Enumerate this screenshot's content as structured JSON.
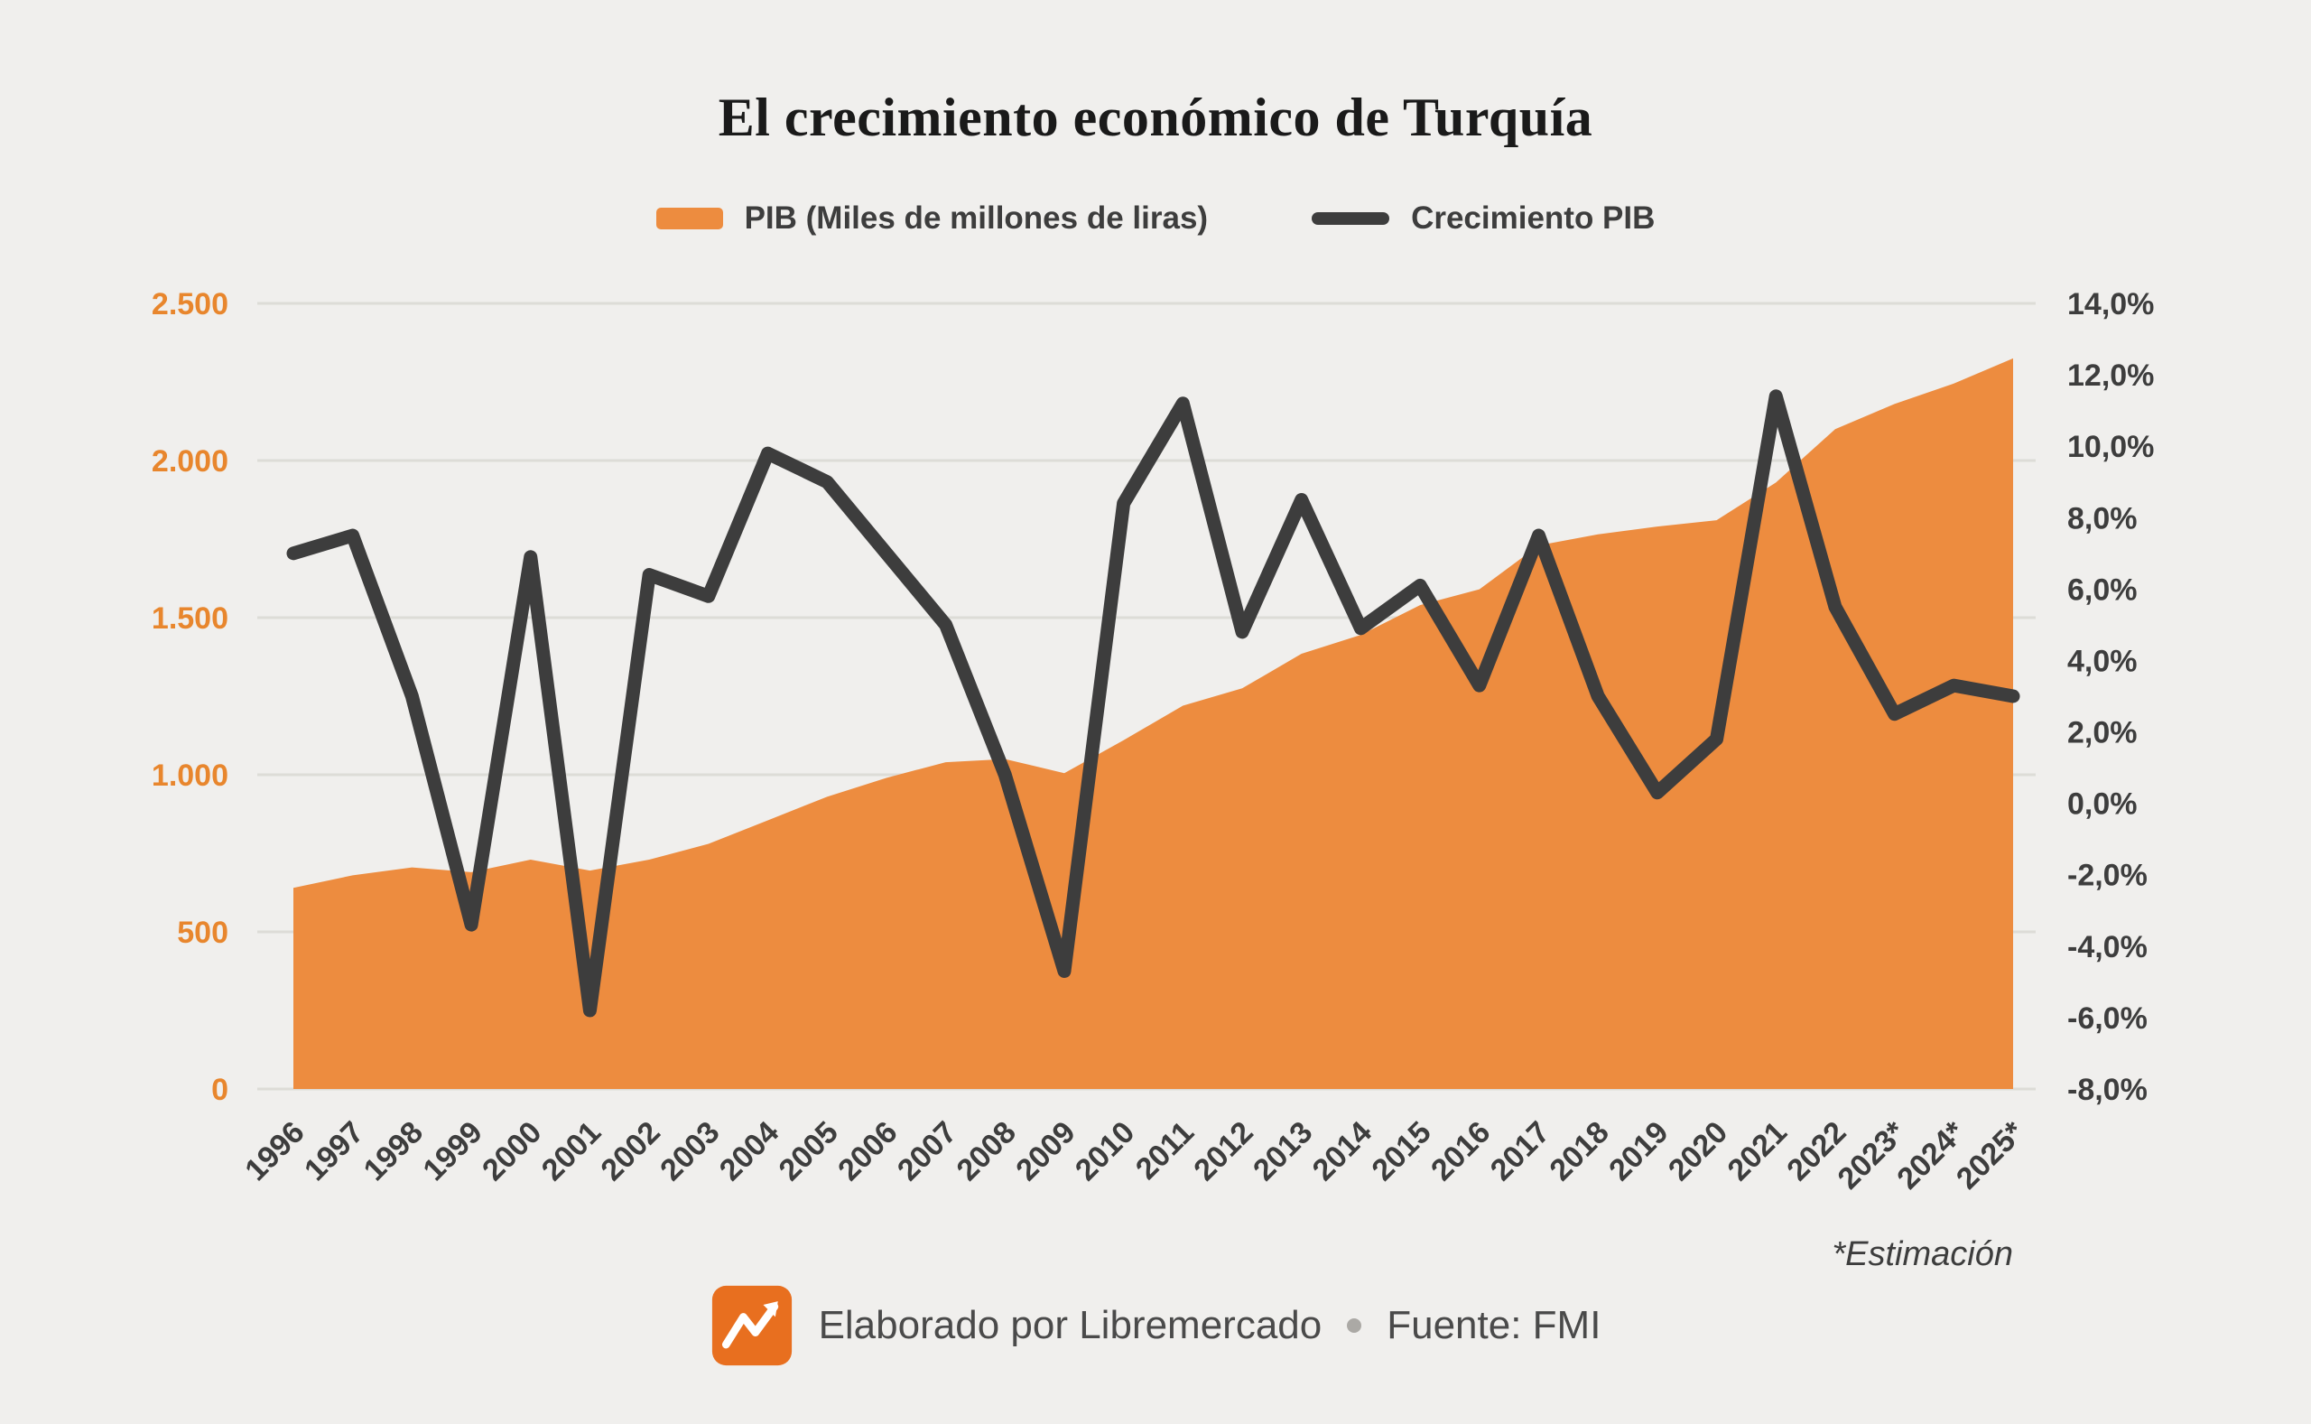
{
  "title": "El crecimiento económico de Turquía",
  "legend": {
    "pib": "PIB (Miles de millones de liras)",
    "growth": "Crecimiento PIB"
  },
  "footnote": "*Estimación",
  "footer": {
    "credit": "Elaborado por Libremercado",
    "source": "Fuente: FMI"
  },
  "colors": {
    "background": "#F0EFED",
    "orange": "#ED8C3F",
    "orange_label": "#E8862D",
    "line": "#3D3D3D",
    "grid": "#DDDCD7"
  },
  "chart_data": {
    "type": "area+line",
    "title": "El crecimiento económico de Turquía",
    "categories": [
      "1996",
      "1997",
      "1998",
      "1999",
      "2000",
      "2001",
      "2002",
      "2003",
      "2004",
      "2005",
      "2006",
      "2007",
      "2008",
      "2009",
      "2010",
      "2011",
      "2012",
      "2013",
      "2014",
      "2015",
      "2016",
      "2017",
      "2018",
      "2019",
      "2020",
      "2021",
      "2022",
      "2023*",
      "2024*",
      "2025*"
    ],
    "series": [
      {
        "name": "PIB (Miles de millones de liras)",
        "type": "area",
        "axis": "left",
        "color": "#ED8C3F",
        "values": [
          640,
          680,
          705,
          690,
          730,
          695,
          730,
          780,
          855,
          930,
          990,
          1040,
          1050,
          1005,
          1110,
          1220,
          1275,
          1385,
          1445,
          1540,
          1590,
          1730,
          1765,
          1790,
          1810,
          1930,
          2100,
          2180,
          2245,
          2325
        ]
      },
      {
        "name": "Crecimiento PIB",
        "type": "line",
        "axis": "right",
        "color": "#3D3D3D",
        "values": [
          7.0,
          7.5,
          3.0,
          -3.4,
          6.9,
          -5.8,
          6.4,
          5.8,
          9.8,
          9.0,
          7.0,
          5.0,
          0.8,
          -4.7,
          8.4,
          11.2,
          4.8,
          8.5,
          4.9,
          6.1,
          3.3,
          7.5,
          3.0,
          0.3,
          1.8,
          11.4,
          5.5,
          2.5,
          3.3,
          3.0
        ]
      }
    ],
    "left_axis": {
      "min": 0,
      "max": 2500,
      "tick_values": [
        0,
        500,
        1000,
        1500,
        2000,
        2500
      ],
      "ticks": [
        "0",
        "500",
        "1.000",
        "1.500",
        "2.000",
        "2.500"
      ]
    },
    "right_axis": {
      "min": -8,
      "max": 14,
      "tick_values": [
        -8,
        -6,
        -4,
        -2,
        0,
        2,
        4,
        6,
        8,
        10,
        12,
        14
      ],
      "ticks": [
        "-8,0%",
        "-6,0%",
        "-4,0%",
        "-2,0%",
        "0,0%",
        "2,0%",
        "4,0%",
        "6,0%",
        "8,0%",
        "10,0%",
        "12,0%",
        "14,0%"
      ]
    },
    "grid": true,
    "legend_position": "top",
    "footnote": "*Estimación"
  }
}
